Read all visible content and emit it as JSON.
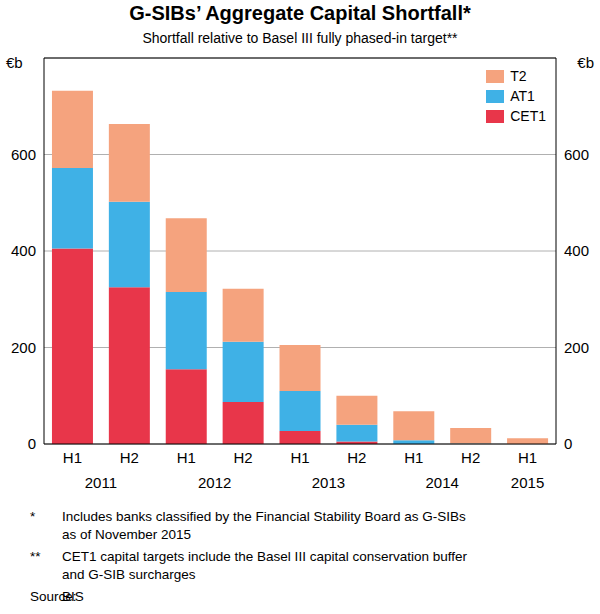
{
  "chart_data": {
    "type": "bar",
    "title": "G-SIBs’ Aggregate Capital Shortfall*",
    "subtitle": "Shortfall relative to Basel III fully phased-in target**",
    "y_unit_label": "€b",
    "categories": [
      "H1",
      "H2",
      "H1",
      "H2",
      "H1",
      "H2",
      "H1",
      "H2",
      "H1"
    ],
    "groups": [
      {
        "label": "2011",
        "span": 2
      },
      {
        "label": "2012",
        "span": 2
      },
      {
        "label": "2013",
        "span": 2
      },
      {
        "label": "2014",
        "span": 2
      },
      {
        "label": "2015",
        "span": 1
      }
    ],
    "series": [
      {
        "name": "CET1",
        "color": "#e8364a",
        "values": [
          405,
          325,
          155,
          87,
          27,
          5,
          0,
          0,
          0
        ]
      },
      {
        "name": "AT1",
        "color": "#3fb1e6",
        "values": [
          167,
          177,
          160,
          125,
          83,
          35,
          8,
          1,
          0
        ]
      },
      {
        "name": "T2",
        "color": "#f5a37e",
        "values": [
          160,
          161,
          153,
          110,
          95,
          60,
          60,
          32,
          12
        ]
      }
    ],
    "stacked": true,
    "ylim": [
      0,
      800
    ],
    "yticks": [
      0,
      200,
      400,
      600
    ],
    "grid": true,
    "legend": "top-right",
    "notes": [
      {
        "mark": "*",
        "text": "Includes banks classified by the Financial Stability Board as G-SIBs as of November 2015"
      },
      {
        "mark": "**",
        "text": "CET1 capital targets include the Basel III capital conservation buffer and G-SIB surcharges"
      }
    ],
    "source": {
      "label": "Source:",
      "text": "BIS"
    }
  }
}
